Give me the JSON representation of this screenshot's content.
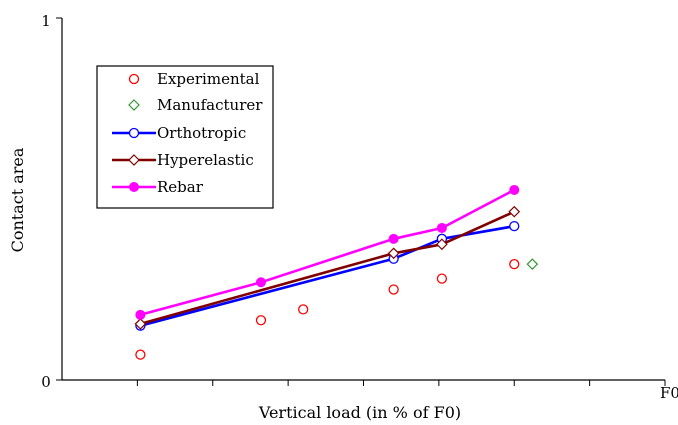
{
  "chart_data": {
    "type": "line",
    "xlabel": "Vertical load (in % of F0)",
    "ylabel": "Contact area",
    "xlim": [
      0,
      1
    ],
    "ylim": [
      0,
      1
    ],
    "x_tick_labels": [
      {
        "x": 1,
        "label": "F0"
      }
    ],
    "y_tick_labels": [
      {
        "y": 0,
        "label": "0"
      },
      {
        "y": 1,
        "label": "1"
      }
    ],
    "grid": false,
    "legend_position": "top-left",
    "series": [
      {
        "name": "Experimental",
        "marker": "circle-open",
        "line": false,
        "color": "#ff0000",
        "x": [
          0.13,
          0.33,
          0.4,
          0.55,
          0.63,
          0.75
        ],
        "y": [
          0.07,
          0.165,
          0.195,
          0.25,
          0.28,
          0.32
        ]
      },
      {
        "name": "Manufacturer",
        "marker": "diamond-open",
        "line": false,
        "color": "#339933",
        "x": [
          0.78
        ],
        "y": [
          0.32
        ]
      },
      {
        "name": "Orthotropic",
        "marker": "circle-open",
        "line": true,
        "color": "#0000ff",
        "x": [
          0.13,
          0.55,
          0.63,
          0.75
        ],
        "y": [
          0.15,
          0.335,
          0.39,
          0.425
        ]
      },
      {
        "name": "Hyperelastic",
        "marker": "diamond-open",
        "line": true,
        "color": "#800000",
        "x": [
          0.13,
          0.55,
          0.63,
          0.75
        ],
        "y": [
          0.155,
          0.35,
          0.375,
          0.465
        ]
      },
      {
        "name": "Rebar",
        "marker": "circle-filled",
        "line": true,
        "color": "#ff00ff",
        "x": [
          0.13,
          0.33,
          0.55,
          0.63,
          0.75
        ],
        "y": [
          0.18,
          0.27,
          0.39,
          0.42,
          0.525
        ]
      }
    ]
  }
}
